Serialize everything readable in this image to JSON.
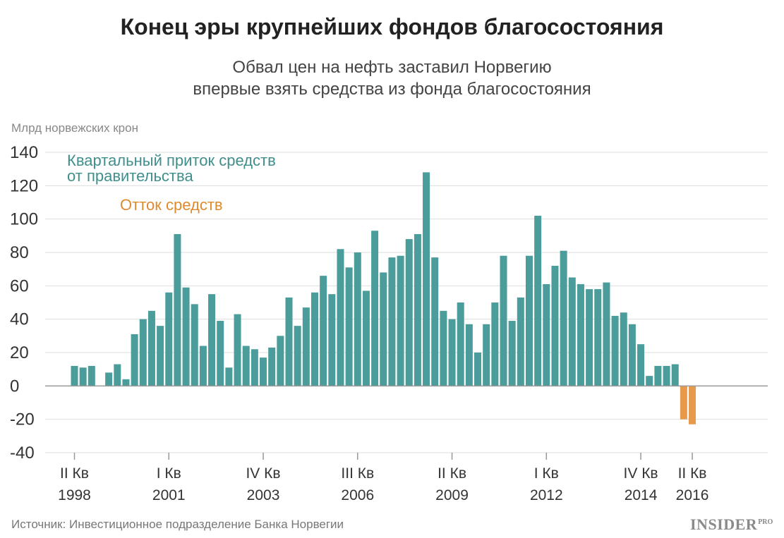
{
  "title": "Конец эры крупнейших фондов благосостояния",
  "subtitle": [
    "Обвал цен на нефть заставил Норвегию",
    "впервые взять средства из фонда благосостояния"
  ],
  "unit_label": "Млрд норвежских крон",
  "source": "Источник: Инвестиционное подразделение Банка Норвегии",
  "logo": {
    "main": "INSIDER",
    "sup": "PRO"
  },
  "colors": {
    "inflow": "#4a9d9a",
    "outflow": "#e89a4c",
    "inflow_text": "#3f8f8c",
    "outflow_text": "#e08a2e",
    "grid": "#dddddd",
    "zero": "#999999"
  },
  "chart_data": {
    "type": "bar",
    "title": "Конец эры крупнейших фондов благосостояния",
    "ylabel": "Млрд норвежских крон",
    "ylim": [
      -40,
      140
    ],
    "yticks": [
      140,
      120,
      100,
      80,
      60,
      40,
      20,
      0,
      -20,
      -40
    ],
    "grid": true,
    "first_quarter": "II Кв 1998",
    "x_ticks": [
      {
        "index": 0,
        "line1": "II Кв",
        "line2": "1998"
      },
      {
        "index": 11,
        "line1": "I Кв",
        "line2": "2001"
      },
      {
        "index": 22,
        "line1": "IV Кв",
        "line2": "2003"
      },
      {
        "index": 33,
        "line1": "III Кв",
        "line2": "2006"
      },
      {
        "index": 44,
        "line1": "II Кв",
        "line2": "2009"
      },
      {
        "index": 55,
        "line1": "I Кв",
        "line2": "2012"
      },
      {
        "index": 66,
        "line1": "IV Кв",
        "line2": "2014"
      },
      {
        "index": 72,
        "line1": "II Кв",
        "line2": "2016"
      }
    ],
    "series": [
      {
        "name": "Квартальный приток средств от правительства",
        "legend_lines": [
          "Квартальный приток средств",
          "от правительства"
        ],
        "values": [
          12,
          11,
          12,
          null,
          8,
          13,
          4,
          31,
          40,
          45,
          36,
          56,
          91,
          59,
          49,
          24,
          55,
          39,
          11,
          43,
          24,
          22,
          17,
          23,
          30,
          53,
          36,
          47,
          56,
          66,
          55,
          82,
          71,
          80,
          57,
          93,
          68,
          77,
          78,
          88,
          91,
          128,
          77,
          45,
          40,
          50,
          37,
          20,
          37,
          50,
          78,
          39,
          53,
          78,
          102,
          61,
          72,
          81,
          65,
          61,
          58,
          58,
          62,
          42,
          44,
          37,
          25,
          6,
          12,
          12,
          13,
          null,
          null
        ]
      },
      {
        "name": "Отток средств",
        "legend_lines": [
          "Отток средств"
        ],
        "values": [
          null,
          null,
          null,
          null,
          null,
          null,
          null,
          null,
          null,
          null,
          null,
          null,
          null,
          null,
          null,
          null,
          null,
          null,
          null,
          null,
          null,
          null,
          null,
          null,
          null,
          null,
          null,
          null,
          null,
          null,
          null,
          null,
          null,
          null,
          null,
          null,
          null,
          null,
          null,
          null,
          null,
          null,
          null,
          null,
          null,
          null,
          null,
          null,
          null,
          null,
          null,
          null,
          null,
          null,
          null,
          null,
          null,
          null,
          null,
          null,
          null,
          null,
          null,
          null,
          null,
          null,
          null,
          null,
          null,
          null,
          null,
          -20,
          -23
        ]
      }
    ]
  }
}
